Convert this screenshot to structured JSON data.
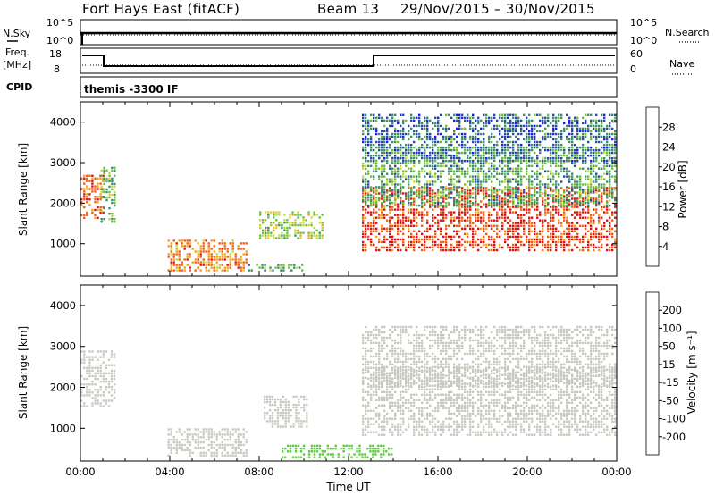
{
  "header": {
    "station": "Fort Hays East (fitACF)",
    "beam": "Beam 13",
    "dates": "29/Nov/2015 – 30/Nov/2015"
  },
  "top_panels": {
    "nsky_label": "N.Sky",
    "nsearch_label": "N.Search",
    "noise_ticks": [
      "10^5",
      "10^0"
    ],
    "freq_label": "Freq.",
    "freq_unit": "[MHz]",
    "freq_ticks": [
      "18",
      "8"
    ],
    "nave_label": "Nave",
    "nave_ticks": [
      "60",
      "0"
    ],
    "cpid_label": "CPID",
    "cpid_value": "themis -3300 IF"
  },
  "colors": {
    "power": [
      "#1a1aff",
      "#2a4aa8",
      "#3b8f6a",
      "#6cbf3a",
      "#c8d83a",
      "#f5a11a",
      "#f06010",
      "#e01010"
    ],
    "velocity": [
      "#e01010",
      "#f05010",
      "#f59a10",
      "#c8c8c0",
      "#c8c8c0",
      "#5cc840",
      "#3a8f6a",
      "#2a55a8",
      "#2020c0"
    ],
    "ground_scatter": "#c8c8c0"
  },
  "chart_data": [
    {
      "type": "heatmap",
      "panel": "power",
      "ylabel": "Slant Range [km]",
      "yticks": [
        "1000",
        "2000",
        "3000",
        "4000"
      ],
      "ylim": [
        200,
        4500
      ],
      "x_range_hours": [
        0,
        24
      ],
      "colorbar": {
        "label": "Power [dB]",
        "ticks": [
          "4",
          "8",
          "12",
          "16",
          "20",
          "24",
          "28"
        ],
        "range": [
          0,
          32
        ]
      },
      "regions": [
        {
          "t": [
            0.0,
            1.1
          ],
          "r": [
            1600,
            2700
          ],
          "value": 26
        },
        {
          "t": [
            0.9,
            1.6
          ],
          "r": [
            1500,
            2900
          ],
          "value": 14
        },
        {
          "t": [
            3.9,
            7.5
          ],
          "r": [
            300,
            1100
          ],
          "value": 24
        },
        {
          "t": [
            7.5,
            10.0
          ],
          "r": [
            300,
            500
          ],
          "value": 12
        },
        {
          "t": [
            8.0,
            10.9
          ],
          "r": [
            1100,
            1800
          ],
          "value": 16
        },
        {
          "t": [
            12.6,
            24.0
          ],
          "r": [
            800,
            2400
          ],
          "value": 28
        },
        {
          "t": [
            12.6,
            24.0
          ],
          "r": [
            1900,
            3400
          ],
          "value": 12
        },
        {
          "t": [
            12.6,
            24.0
          ],
          "r": [
            3000,
            4200
          ],
          "value": 8
        }
      ]
    },
    {
      "type": "heatmap",
      "panel": "velocity",
      "ylabel": "Slant Range [km]",
      "yticks": [
        "1000",
        "2000",
        "3000",
        "4000"
      ],
      "ylim": [
        200,
        4500
      ],
      "x_range_hours": [
        0,
        24
      ],
      "xlabel": "Time UT",
      "xticks": [
        "00:00",
        "04:00",
        "08:00",
        "12:00",
        "16:00",
        "20:00",
        "00:00"
      ],
      "colorbar": {
        "label": "Velocity [m s⁻¹]",
        "ticks": [
          "200",
          "100",
          "50",
          "15",
          "-15",
          "-50",
          "-100",
          "-200"
        ],
        "range": [
          -250,
          250
        ]
      },
      "regions": [
        {
          "t": [
            0.0,
            1.6
          ],
          "r": [
            1500,
            2900
          ],
          "value": 0
        },
        {
          "t": [
            3.9,
            7.5
          ],
          "r": [
            300,
            1000
          ],
          "value": 30
        },
        {
          "t": [
            8.2,
            10.2
          ],
          "r": [
            1000,
            1800
          ],
          "value": 40
        },
        {
          "t": [
            9.0,
            14.0
          ],
          "r": [
            250,
            600
          ],
          "value": -60
        },
        {
          "t": [
            12.6,
            24.0
          ],
          "r": [
            800,
            2500
          ],
          "value": 0
        },
        {
          "t": [
            12.6,
            24.0
          ],
          "r": [
            2000,
            3500
          ],
          "value": -10
        }
      ]
    }
  ]
}
